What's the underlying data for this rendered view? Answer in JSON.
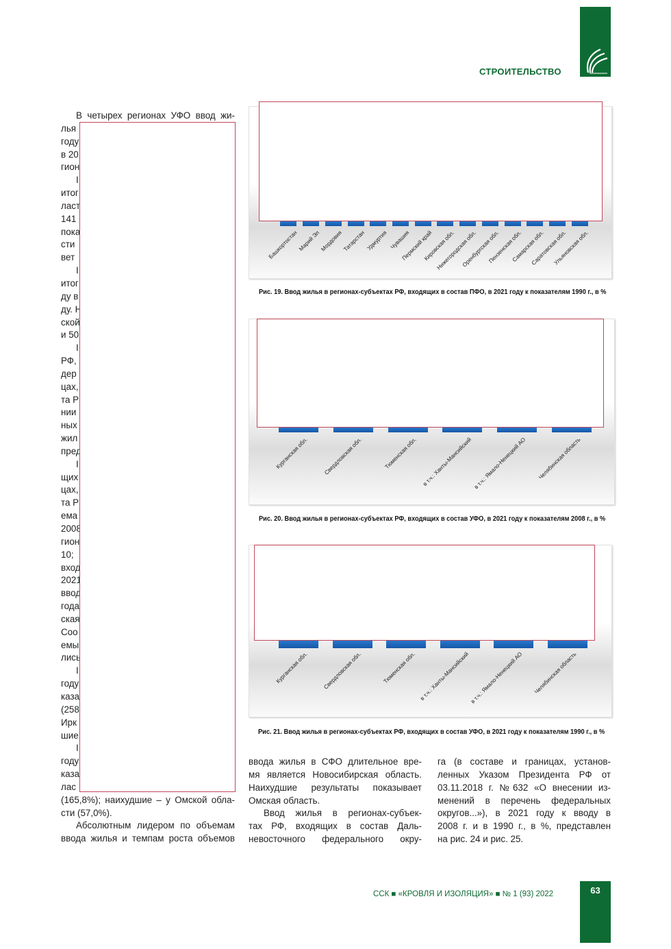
{
  "header": {
    "section": "СТРОИТЕЛЬСТВО",
    "logo_icon": "leaf-logo-icon"
  },
  "left_column": {
    "lines": [
      "В четырех регионах УФО ввод жи-",
      "лья",
      "году",
      "в 20",
      "гион",
      "I",
      "итог",
      "ласт",
      "141",
      "пока",
      "сти",
      "вет",
      "I",
      "итог",
      "ду в",
      "ду. Н",
      "ской",
      "и 50",
      "I",
      "РФ,",
      "дер",
      "цах,",
      "та Р",
      "нии",
      "ных",
      "жил",
      "пред",
      "I",
      "щих",
      "цах,",
      "та Р",
      "ема",
      "2008",
      "гион",
      "10;",
      "вход",
      "2021",
      "ввод",
      "года",
      "ская",
      "Соо",
      "емы",
      "лись",
      "I",
      "году",
      "каза",
      "(258",
      "Ирк",
      "шие",
      "I",
      "году",
      "каза",
      "лас",
      "(165,8%); наихудшие – у Омской обла-",
      "сти (57,0%).",
      "Абсолютным лидером по объемам",
      "ввода жилья и темпам роста объемов"
    ]
  },
  "figures": [
    {
      "caption": "Рис. 19. Ввод жилья в регионах-субъектах РФ, входящих в состав ПФО, в 2021 году к показателям 1990 г., в %",
      "categories": [
        "Башкортостан",
        "Марий Эл",
        "Мордовия",
        "Татарстан",
        "Удмуртия",
        "Чувашия",
        "Пермский край",
        "Кировская обл.",
        "Нижегородская обл.",
        "Оренбургская обл.",
        "Пензенская обл.",
        "Самарская обл.",
        "Саратовская обл.",
        "Ульяновская обл."
      ]
    },
    {
      "caption": "Рис. 20. Ввод жилья в регионах-субъектах РФ, входящих в состав УФО, в 2021 году к показателям 2008 г., в %",
      "categories": [
        "Курганская обл.",
        "Свердловская обл.",
        "Тюменская обл.",
        "в т.ч.: Ханты-Мансийский",
        "в т.ч.: Ямало-Ненецкий АО",
        "Челябинская область"
      ]
    },
    {
      "caption": "Рис. 21. Ввод жилья в регионах-субъектах РФ, входящих в состав УФО, в 2021 году к показателям 1990 г., в %",
      "categories": [
        "Курганская обл.",
        "Свердловская обл.",
        "Тюменская обл.",
        "в т.ч.: Ханты-Мансийский",
        "в т.ч.: Ямало-Ненецкий АО",
        "Челябинская область"
      ]
    }
  ],
  "middle_column": {
    "lines": [
      "ввода жилья в СФО длительное вре-",
      "мя является Новосибирская область.",
      "Наихудшие результаты показывает",
      "Омская область.",
      "Ввод жилья в регионах-субъек-",
      "тах РФ, входящих в состав Даль-",
      "невосточного федерального окру-"
    ]
  },
  "right_column": {
    "lines": [
      "га (в составе и границах, установ-",
      "ленных Указом Президента РФ от",
      "03.11.2018 г. №632 «О внесении из-",
      "менений в перечень федеральных",
      "округов...»), в 2021 году к вводу в",
      "2008 г. и в 1990 г., в %, представлен",
      "на рис. 24 и рис. 25."
    ]
  },
  "footer": {
    "text": "ССК ■ «КРОВЛЯ И ИЗОЛЯЦИЯ» ■ № 1 (93) 2022",
    "page_number": "63"
  },
  "colors": {
    "brand_green": "#0f6b34",
    "bar_blue": "#1e68bd",
    "redaction_border": "#c0475a"
  }
}
